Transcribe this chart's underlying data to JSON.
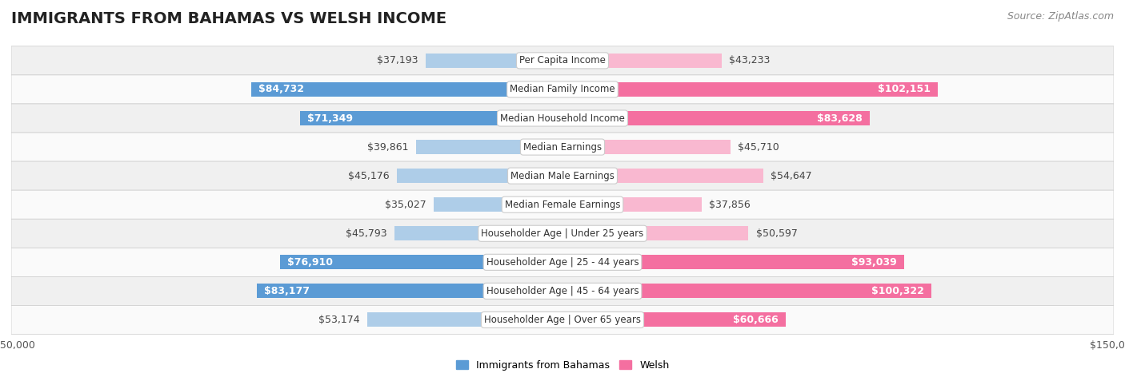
{
  "title": "IMMIGRANTS FROM BAHAMAS VS WELSH INCOME",
  "source": "Source: ZipAtlas.com",
  "categories": [
    "Per Capita Income",
    "Median Family Income",
    "Median Household Income",
    "Median Earnings",
    "Median Male Earnings",
    "Median Female Earnings",
    "Householder Age | Under 25 years",
    "Householder Age | 25 - 44 years",
    "Householder Age | 45 - 64 years",
    "Householder Age | Over 65 years"
  ],
  "bahamas_values": [
    37193,
    84732,
    71349,
    39861,
    45176,
    35027,
    45793,
    76910,
    83177,
    53174
  ],
  "welsh_values": [
    43233,
    102151,
    83628,
    45710,
    54647,
    37856,
    50597,
    93039,
    100322,
    60666
  ],
  "bahamas_color_strong": "#5b9bd5",
  "bahamas_color_light": "#aecde8",
  "welsh_color_strong": "#f46fa0",
  "welsh_color_light": "#f9b8d0",
  "max_value": 150000,
  "background_color": "#ffffff",
  "row_bg_even": "#f0f0f0",
  "row_bg_odd": "#fafafa",
  "bahamas_label": "Immigrants from Bahamas",
  "welsh_label": "Welsh",
  "title_fontsize": 14,
  "source_fontsize": 9,
  "bar_label_fontsize": 9,
  "category_fontsize": 8.5,
  "axis_label_fontsize": 9,
  "legend_fontsize": 9,
  "bar_height": 0.5,
  "strong_threshold": 60000
}
